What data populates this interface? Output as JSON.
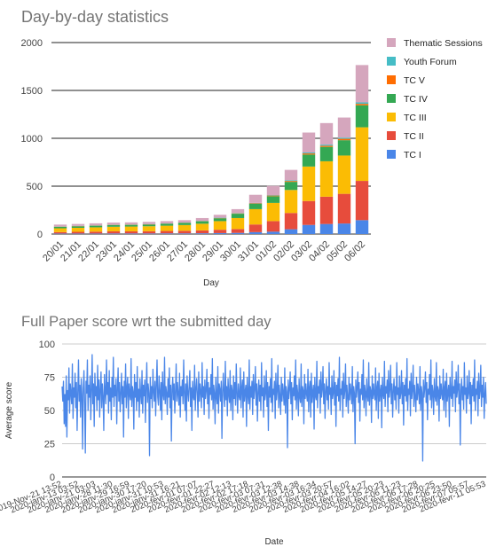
{
  "chart_data": [
    {
      "type": "bar",
      "stacked": true,
      "title": "Day-by-day statistics",
      "xlabel": "Day",
      "ylabel": "",
      "ylim": [
        0,
        2000
      ],
      "yticks": [
        "0",
        "500",
        "1000",
        "1500",
        "2000"
      ],
      "grid": true,
      "legend_position": "right",
      "categories": [
        "20/01",
        "21/01",
        "22/01",
        "23/01",
        "24/01",
        "25/01",
        "26/01",
        "27/01",
        "28/01",
        "29/01",
        "30/01",
        "31/01",
        "01/02",
        "02/02",
        "03/02",
        "04/02",
        "05/02",
        "06/02"
      ],
      "series": [
        {
          "name": "TC I",
          "color": "#4a86e8",
          "values": [
            5,
            5,
            5,
            6,
            6,
            6,
            7,
            7,
            8,
            10,
            12,
            20,
            25,
            50,
            95,
            105,
            110,
            145
          ]
        },
        {
          "name": "TC II",
          "color": "#e74c3c",
          "values": [
            15,
            18,
            20,
            22,
            22,
            23,
            25,
            27,
            30,
            35,
            40,
            80,
            110,
            170,
            250,
            285,
            310,
            410
          ]
        },
        {
          "name": "TC III",
          "color": "#fbbc04",
          "values": [
            40,
            42,
            45,
            48,
            50,
            52,
            55,
            60,
            70,
            90,
            115,
            160,
            190,
            240,
            360,
            370,
            400,
            560
          ]
        },
        {
          "name": "TC IV",
          "color": "#34a853",
          "values": [
            15,
            16,
            17,
            18,
            18,
            19,
            20,
            22,
            25,
            30,
            45,
            55,
            70,
            85,
            125,
            150,
            160,
            230
          ]
        },
        {
          "name": "TC V",
          "color": "#ff6d01",
          "values": [
            2,
            2,
            2,
            2,
            2,
            2,
            2,
            2,
            3,
            3,
            4,
            5,
            7,
            9,
            12,
            12,
            15,
            15
          ]
        },
        {
          "name": "Youth Forum",
          "color": "#46bdc6",
          "values": [
            2,
            2,
            2,
            2,
            2,
            2,
            2,
            2,
            3,
            3,
            4,
            5,
            5,
            8,
            10,
            12,
            12,
            15
          ]
        },
        {
          "name": "Thematic Sessions",
          "color": "#d5a6bd",
          "values": [
            20,
            20,
            21,
            22,
            22,
            23,
            24,
            25,
            28,
            30,
            40,
            85,
            95,
            108,
            208,
            225,
            210,
            390
          ]
        }
      ]
    },
    {
      "type": "line",
      "title": "Full Paper score wrt the submitted day",
      "xlabel": "Date",
      "ylabel": "Average score",
      "ylim": [
        0,
        100
      ],
      "yticks": [
        "0",
        "25",
        "50",
        "75",
        "100"
      ],
      "grid": true,
      "color": "#4a86e8",
      "x_tick_labels": [
        "2019-Nov-21 13:52",
        "2020-janv-13 03:52",
        "2020-janv-21 03:03",
        "2020-janv-28 11:30",
        "2020-janv-29 16:59",
        "2020-janv-30 17:20",
        "2020-janv-31 10:53",
        "2020-janv-31 16:21",
        "2020-févr-01 07:07",
        "2020-févr-01 22:27",
        "2020-févr-02 12:13",
        "2020-févr-02 17:18",
        "2020-févr-03 07:31",
        "2020-févr-03 12:38",
        "2020-févr-03 14:38",
        "2020-févr-03 16:34",
        "2020-févr-03 20:57",
        "2020-févr-04 16:02",
        "2020-févr-05 14:27",
        "2020-févr-05 20:23",
        "2020-févr-06 11:23",
        "2020-févr-06 17:28",
        "2020-févr-06 20:25",
        "2020-févr-06 23:50",
        "2020-févr-07 05:57",
        "2020-févr-11 05:53"
      ],
      "values": [
        68,
        57,
        72,
        40,
        62,
        38,
        76,
        30,
        65,
        58,
        82,
        48,
        70,
        63,
        55,
        85,
        44,
        67,
        60,
        78,
        52,
        71,
        35,
        64,
        88,
        57,
        69,
        45,
        74,
        62,
        21,
        67,
        80,
        55,
        18,
        72,
        63,
        88,
        50,
        69,
        60,
        76,
        43,
        65,
        92,
        55,
        70,
        38,
        78,
        61,
        68,
        50,
        84,
        58,
        73,
        45,
        66,
        79,
        52,
        70,
        60,
        35,
        77,
        64,
        55,
        88,
        62,
        71,
        48,
        80,
        57,
        67,
        43,
        75,
        60,
        90,
        53,
        69,
        61,
        74,
        40,
        66,
        82,
        57,
        71,
        49,
        63,
        78,
        55,
        68,
        30,
        72,
        60,
        85,
        52,
        67,
        75,
        44,
        70,
        62,
        58,
        89,
        53,
        68,
        64,
        36,
        77,
        60,
        71,
        50,
        83,
        57,
        66,
        45,
        74,
        62,
        55,
        80,
        48,
        69,
        61,
        73,
        41,
        67,
        86,
        56,
        70,
        63,
        16,
        75,
        59,
        68,
        52,
        81,
        64,
        57,
        72,
        46,
        69,
        88,
        60,
        54,
        76,
        65,
        50,
        71,
        43,
        79,
        62,
        58,
        90,
        55,
        68,
        63,
        47,
        74,
        60,
        82,
        52,
        69,
        27,
        66,
        75,
        58,
        70,
        48,
        64,
        85,
        57,
        71,
        62,
        54,
        78,
        45,
        68,
        61,
        73,
        55,
        88,
        63,
        50,
        70,
        42,
        76,
        64,
        57,
        69,
        80,
        53,
        67,
        35,
        72,
        61,
        58,
        84,
        50,
        66,
        74,
        62,
        45,
        79,
        57,
        70,
        64,
        52,
        86,
        60,
        68,
        47,
        73,
        59,
        65,
        81,
        55,
        71,
        44,
        67,
        62,
        77,
        58,
        89,
        51,
        69,
        63,
        40,
        75,
        60,
        55,
        83,
        48,
        70,
        66,
        57,
        72,
        29,
        64,
        78,
        61,
        53,
        87,
        58,
        68,
        46,
        74,
        62,
        56,
        80,
        50,
        69,
        65,
        43,
        76,
        59,
        71,
        54,
        85,
        63,
        48,
        70,
        61,
        58,
        82,
        52,
        67,
        73,
        45,
        79,
        57,
        64,
        69,
        38,
        75,
        62,
        55,
        88,
        51,
        68,
        60,
        72,
        47,
        77,
        59,
        66,
        83,
        54,
        70,
        42,
        64,
        73,
        57,
        69,
        50,
        86,
        61,
        67,
        45,
        76,
        58,
        63,
        80,
        53,
        71,
        35,
        68,
        60,
        74,
        56,
        89,
        49,
        66,
        62,
        72,
        44,
        78,
        58,
        65,
        84,
        52,
        69,
        61,
        47,
        75,
        57,
        70,
        63,
        54,
        82,
        48,
        68,
        64,
        22,
        73,
        59,
        66,
        79,
        55,
        71,
        43,
        67,
        61,
        76,
        58,
        88,
        51,
        69,
        63,
        46,
        74,
        60,
        56,
        85,
        53,
        68,
        65,
        40,
        77,
        59,
        70,
        62,
        57,
        81,
        49,
        67,
        72,
        45,
        78,
        56,
        64,
        69,
        36,
        75,
        61,
        58,
        87,
        52,
        68,
        63,
        73,
        48,
        79,
        60,
        66,
        83,
        55,
        70,
        44,
        65,
        74,
        58,
        68,
        51,
        86,
        62,
        67,
        47,
        76,
        59,
        63,
        80,
        54,
        71,
        38,
        69,
        61,
        74,
        57,
        90,
        50,
        66,
        62,
        72,
        45,
        78,
        59,
        65,
        85,
        53,
        69,
        60,
        48,
        75,
        58,
        70,
        64,
        55,
        83,
        49,
        68,
        63,
        25,
        73,
        60,
        67,
        79,
        56,
        71,
        42,
        66,
        62,
        77,
        58,
        88,
        52,
        69,
        64,
        46,
        74,
        61,
        57,
        86,
        54,
        68,
        65,
        41,
        76,
        59,
        70,
        62,
        58,
        82,
        50,
        67,
        72,
        44,
        78,
        57,
        64,
        69,
        37,
        75,
        62,
        59,
        87,
        53,
        68,
        63,
        73,
        49,
        80,
        60,
        66,
        84,
        55,
        70,
        45,
        65,
        74,
        58,
        68,
        51,
        86,
        62,
        67,
        48,
        76,
        59,
        63,
        80,
        55,
        71,
        39,
        69,
        61,
        74,
        57,
        89,
        50,
        66,
        62,
        72,
        46,
        78,
        59,
        65,
        84,
        53,
        69,
        60,
        49,
        75,
        58,
        70,
        64,
        55,
        83,
        50,
        68,
        63,
        12,
        73,
        60,
        67,
        79,
        56,
        71,
        43,
        66,
        62,
        77,
        58,
        88,
        52,
        69,
        64,
        47,
        74,
        61,
        57,
        86,
        54,
        68,
        65,
        42,
        76,
        59,
        70,
        62,
        58,
        81,
        50,
        67,
        72,
        45,
        78,
        57,
        64,
        69,
        38,
        75,
        62,
        59,
        87,
        53,
        68,
        63,
        73,
        49,
        79,
        60,
        66,
        84,
        55,
        70,
        24,
        65,
        74,
        58,
        68,
        51,
        86,
        62,
        67,
        48,
        76,
        59,
        63,
        80,
        55,
        71,
        40,
        69,
        61,
        74,
        57,
        88,
        50,
        66,
        62,
        72,
        46,
        78,
        59,
        65,
        84,
        53,
        69,
        60,
        75,
        44,
        62,
        71,
        55
      ]
    }
  ]
}
